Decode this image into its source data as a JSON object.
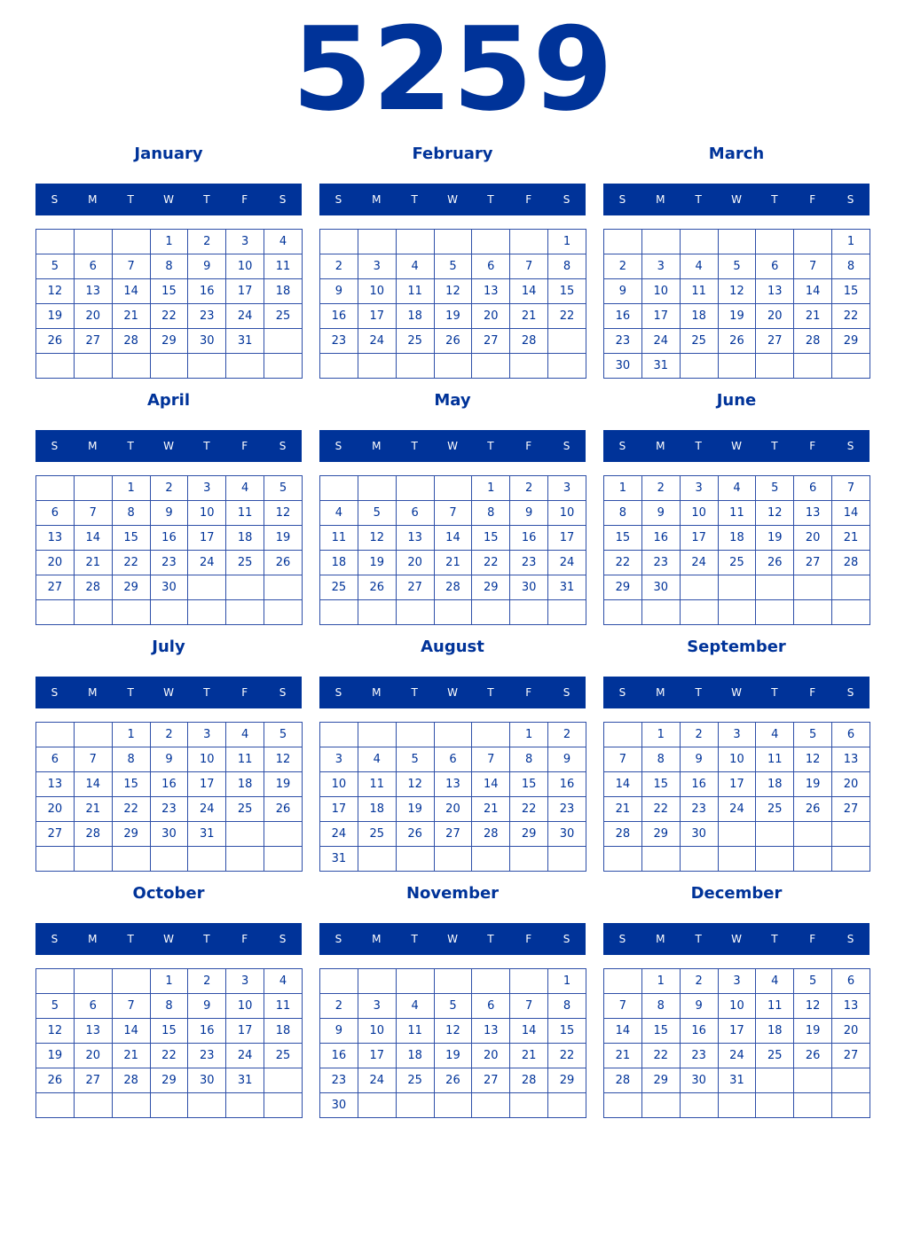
{
  "year": "5259",
  "weekday_labels": [
    "S",
    "M",
    "T",
    "W",
    "T",
    "F",
    "S"
  ],
  "accent_color": "#003399",
  "months": [
    {
      "name": "January",
      "weeks": [
        [
          null,
          null,
          null,
          1,
          2,
          3,
          4
        ],
        [
          5,
          6,
          7,
          8,
          9,
          10,
          11
        ],
        [
          12,
          13,
          14,
          15,
          16,
          17,
          18
        ],
        [
          19,
          20,
          21,
          22,
          23,
          24,
          25
        ],
        [
          26,
          27,
          28,
          29,
          30,
          31,
          null
        ],
        [
          null,
          null,
          null,
          null,
          null,
          null,
          null
        ]
      ]
    },
    {
      "name": "February",
      "weeks": [
        [
          null,
          null,
          null,
          null,
          null,
          null,
          1
        ],
        [
          2,
          3,
          4,
          5,
          6,
          7,
          8
        ],
        [
          9,
          10,
          11,
          12,
          13,
          14,
          15
        ],
        [
          16,
          17,
          18,
          19,
          20,
          21,
          22
        ],
        [
          23,
          24,
          25,
          26,
          27,
          28,
          null
        ],
        [
          null,
          null,
          null,
          null,
          null,
          null,
          null
        ]
      ]
    },
    {
      "name": "March",
      "weeks": [
        [
          null,
          null,
          null,
          null,
          null,
          null,
          1
        ],
        [
          2,
          3,
          4,
          5,
          6,
          7,
          8
        ],
        [
          9,
          10,
          11,
          12,
          13,
          14,
          15
        ],
        [
          16,
          17,
          18,
          19,
          20,
          21,
          22
        ],
        [
          23,
          24,
          25,
          26,
          27,
          28,
          29
        ],
        [
          30,
          31,
          null,
          null,
          null,
          null,
          null
        ]
      ]
    },
    {
      "name": "April",
      "weeks": [
        [
          null,
          null,
          1,
          2,
          3,
          4,
          5
        ],
        [
          6,
          7,
          8,
          9,
          10,
          11,
          12
        ],
        [
          13,
          14,
          15,
          16,
          17,
          18,
          19
        ],
        [
          20,
          21,
          22,
          23,
          24,
          25,
          26
        ],
        [
          27,
          28,
          29,
          30,
          null,
          null,
          null
        ],
        [
          null,
          null,
          null,
          null,
          null,
          null,
          null
        ]
      ]
    },
    {
      "name": "May",
      "weeks": [
        [
          null,
          null,
          null,
          null,
          1,
          2,
          3
        ],
        [
          4,
          5,
          6,
          7,
          8,
          9,
          10
        ],
        [
          11,
          12,
          13,
          14,
          15,
          16,
          17
        ],
        [
          18,
          19,
          20,
          21,
          22,
          23,
          24
        ],
        [
          25,
          26,
          27,
          28,
          29,
          30,
          31
        ],
        [
          null,
          null,
          null,
          null,
          null,
          null,
          null
        ]
      ]
    },
    {
      "name": "June",
      "weeks": [
        [
          1,
          2,
          3,
          4,
          5,
          6,
          7
        ],
        [
          8,
          9,
          10,
          11,
          12,
          13,
          14
        ],
        [
          15,
          16,
          17,
          18,
          19,
          20,
          21
        ],
        [
          22,
          23,
          24,
          25,
          26,
          27,
          28
        ],
        [
          29,
          30,
          null,
          null,
          null,
          null,
          null
        ],
        [
          null,
          null,
          null,
          null,
          null,
          null,
          null
        ]
      ]
    },
    {
      "name": "July",
      "weeks": [
        [
          null,
          null,
          1,
          2,
          3,
          4,
          5
        ],
        [
          6,
          7,
          8,
          9,
          10,
          11,
          12
        ],
        [
          13,
          14,
          15,
          16,
          17,
          18,
          19
        ],
        [
          20,
          21,
          22,
          23,
          24,
          25,
          26
        ],
        [
          27,
          28,
          29,
          30,
          31,
          null,
          null
        ],
        [
          null,
          null,
          null,
          null,
          null,
          null,
          null
        ]
      ]
    },
    {
      "name": "August",
      "weeks": [
        [
          null,
          null,
          null,
          null,
          null,
          1,
          2
        ],
        [
          3,
          4,
          5,
          6,
          7,
          8,
          9
        ],
        [
          10,
          11,
          12,
          13,
          14,
          15,
          16
        ],
        [
          17,
          18,
          19,
          20,
          21,
          22,
          23
        ],
        [
          24,
          25,
          26,
          27,
          28,
          29,
          30
        ],
        [
          31,
          null,
          null,
          null,
          null,
          null,
          null
        ]
      ]
    },
    {
      "name": "September",
      "weeks": [
        [
          null,
          1,
          2,
          3,
          4,
          5,
          6
        ],
        [
          7,
          8,
          9,
          10,
          11,
          12,
          13
        ],
        [
          14,
          15,
          16,
          17,
          18,
          19,
          20
        ],
        [
          21,
          22,
          23,
          24,
          25,
          26,
          27
        ],
        [
          28,
          29,
          30,
          null,
          null,
          null,
          null
        ],
        [
          null,
          null,
          null,
          null,
          null,
          null,
          null
        ]
      ]
    },
    {
      "name": "October",
      "weeks": [
        [
          null,
          null,
          null,
          1,
          2,
          3,
          4
        ],
        [
          5,
          6,
          7,
          8,
          9,
          10,
          11
        ],
        [
          12,
          13,
          14,
          15,
          16,
          17,
          18
        ],
        [
          19,
          20,
          21,
          22,
          23,
          24,
          25
        ],
        [
          26,
          27,
          28,
          29,
          30,
          31,
          null
        ],
        [
          null,
          null,
          null,
          null,
          null,
          null,
          null
        ]
      ]
    },
    {
      "name": "November",
      "weeks": [
        [
          null,
          null,
          null,
          null,
          null,
          null,
          1
        ],
        [
          2,
          3,
          4,
          5,
          6,
          7,
          8
        ],
        [
          9,
          10,
          11,
          12,
          13,
          14,
          15
        ],
        [
          16,
          17,
          18,
          19,
          20,
          21,
          22
        ],
        [
          23,
          24,
          25,
          26,
          27,
          28,
          29
        ],
        [
          30,
          null,
          null,
          null,
          null,
          null,
          null
        ]
      ]
    },
    {
      "name": "December",
      "weeks": [
        [
          null,
          1,
          2,
          3,
          4,
          5,
          6
        ],
        [
          7,
          8,
          9,
          10,
          11,
          12,
          13
        ],
        [
          14,
          15,
          16,
          17,
          18,
          19,
          20
        ],
        [
          21,
          22,
          23,
          24,
          25,
          26,
          27
        ],
        [
          28,
          29,
          30,
          31,
          null,
          null,
          null
        ],
        [
          null,
          null,
          null,
          null,
          null,
          null,
          null
        ]
      ]
    }
  ]
}
